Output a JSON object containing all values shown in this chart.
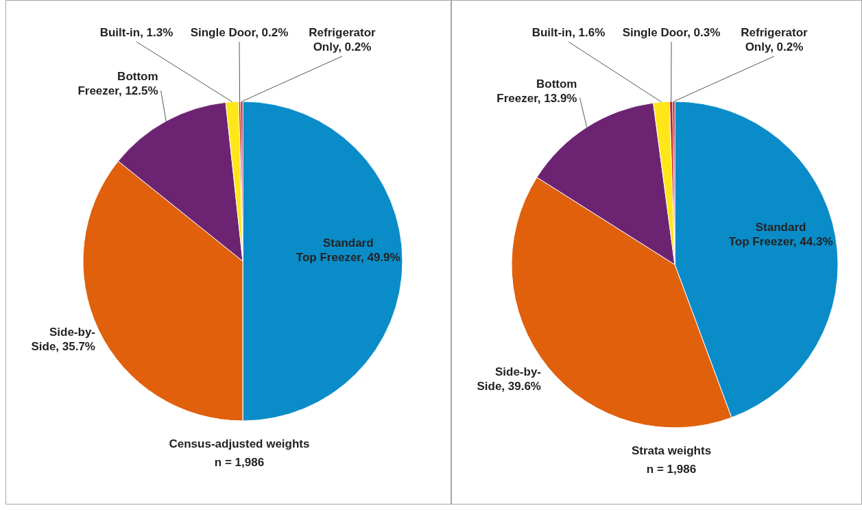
{
  "chart_data": [
    {
      "type": "pie",
      "title": "Census-adjusted weights",
      "subtitle": "n = 1,986",
      "categories": [
        "Standard Top Freezer",
        "Side-by-Side",
        "Bottom Freezer",
        "Built-in",
        "Single Door",
        "Refrigerator Only"
      ],
      "values": [
        49.9,
        35.7,
        12.5,
        1.3,
        0.2,
        0.2
      ],
      "value_labels": [
        "49.9%",
        "35.7%",
        "12.5%",
        "1.3%",
        "0.2%",
        "0.2%"
      ],
      "colors": [
        "#0a8cc8",
        "#e0600c",
        "#6c2472",
        "#ffe619",
        "#c8181e",
        "#8c1420"
      ],
      "data_labels": true,
      "legend": false
    },
    {
      "type": "pie",
      "title": "Strata weights",
      "subtitle": "n = 1,986",
      "categories": [
        "Standard Top Freezer",
        "Side-by-Side",
        "Bottom Freezer",
        "Built-in",
        "Single Door",
        "Refrigerator Only"
      ],
      "values": [
        44.3,
        39.6,
        13.9,
        1.6,
        0.3,
        0.2
      ],
      "value_labels": [
        "44.3%",
        "39.6%",
        "13.9%",
        "1.6%",
        "0.3%",
        "0.2%"
      ],
      "colors": [
        "#0a8cc8",
        "#e0600c",
        "#6c2472",
        "#ffe619",
        "#c8181e",
        "#8c1420"
      ],
      "data_labels": true,
      "legend": false
    }
  ]
}
